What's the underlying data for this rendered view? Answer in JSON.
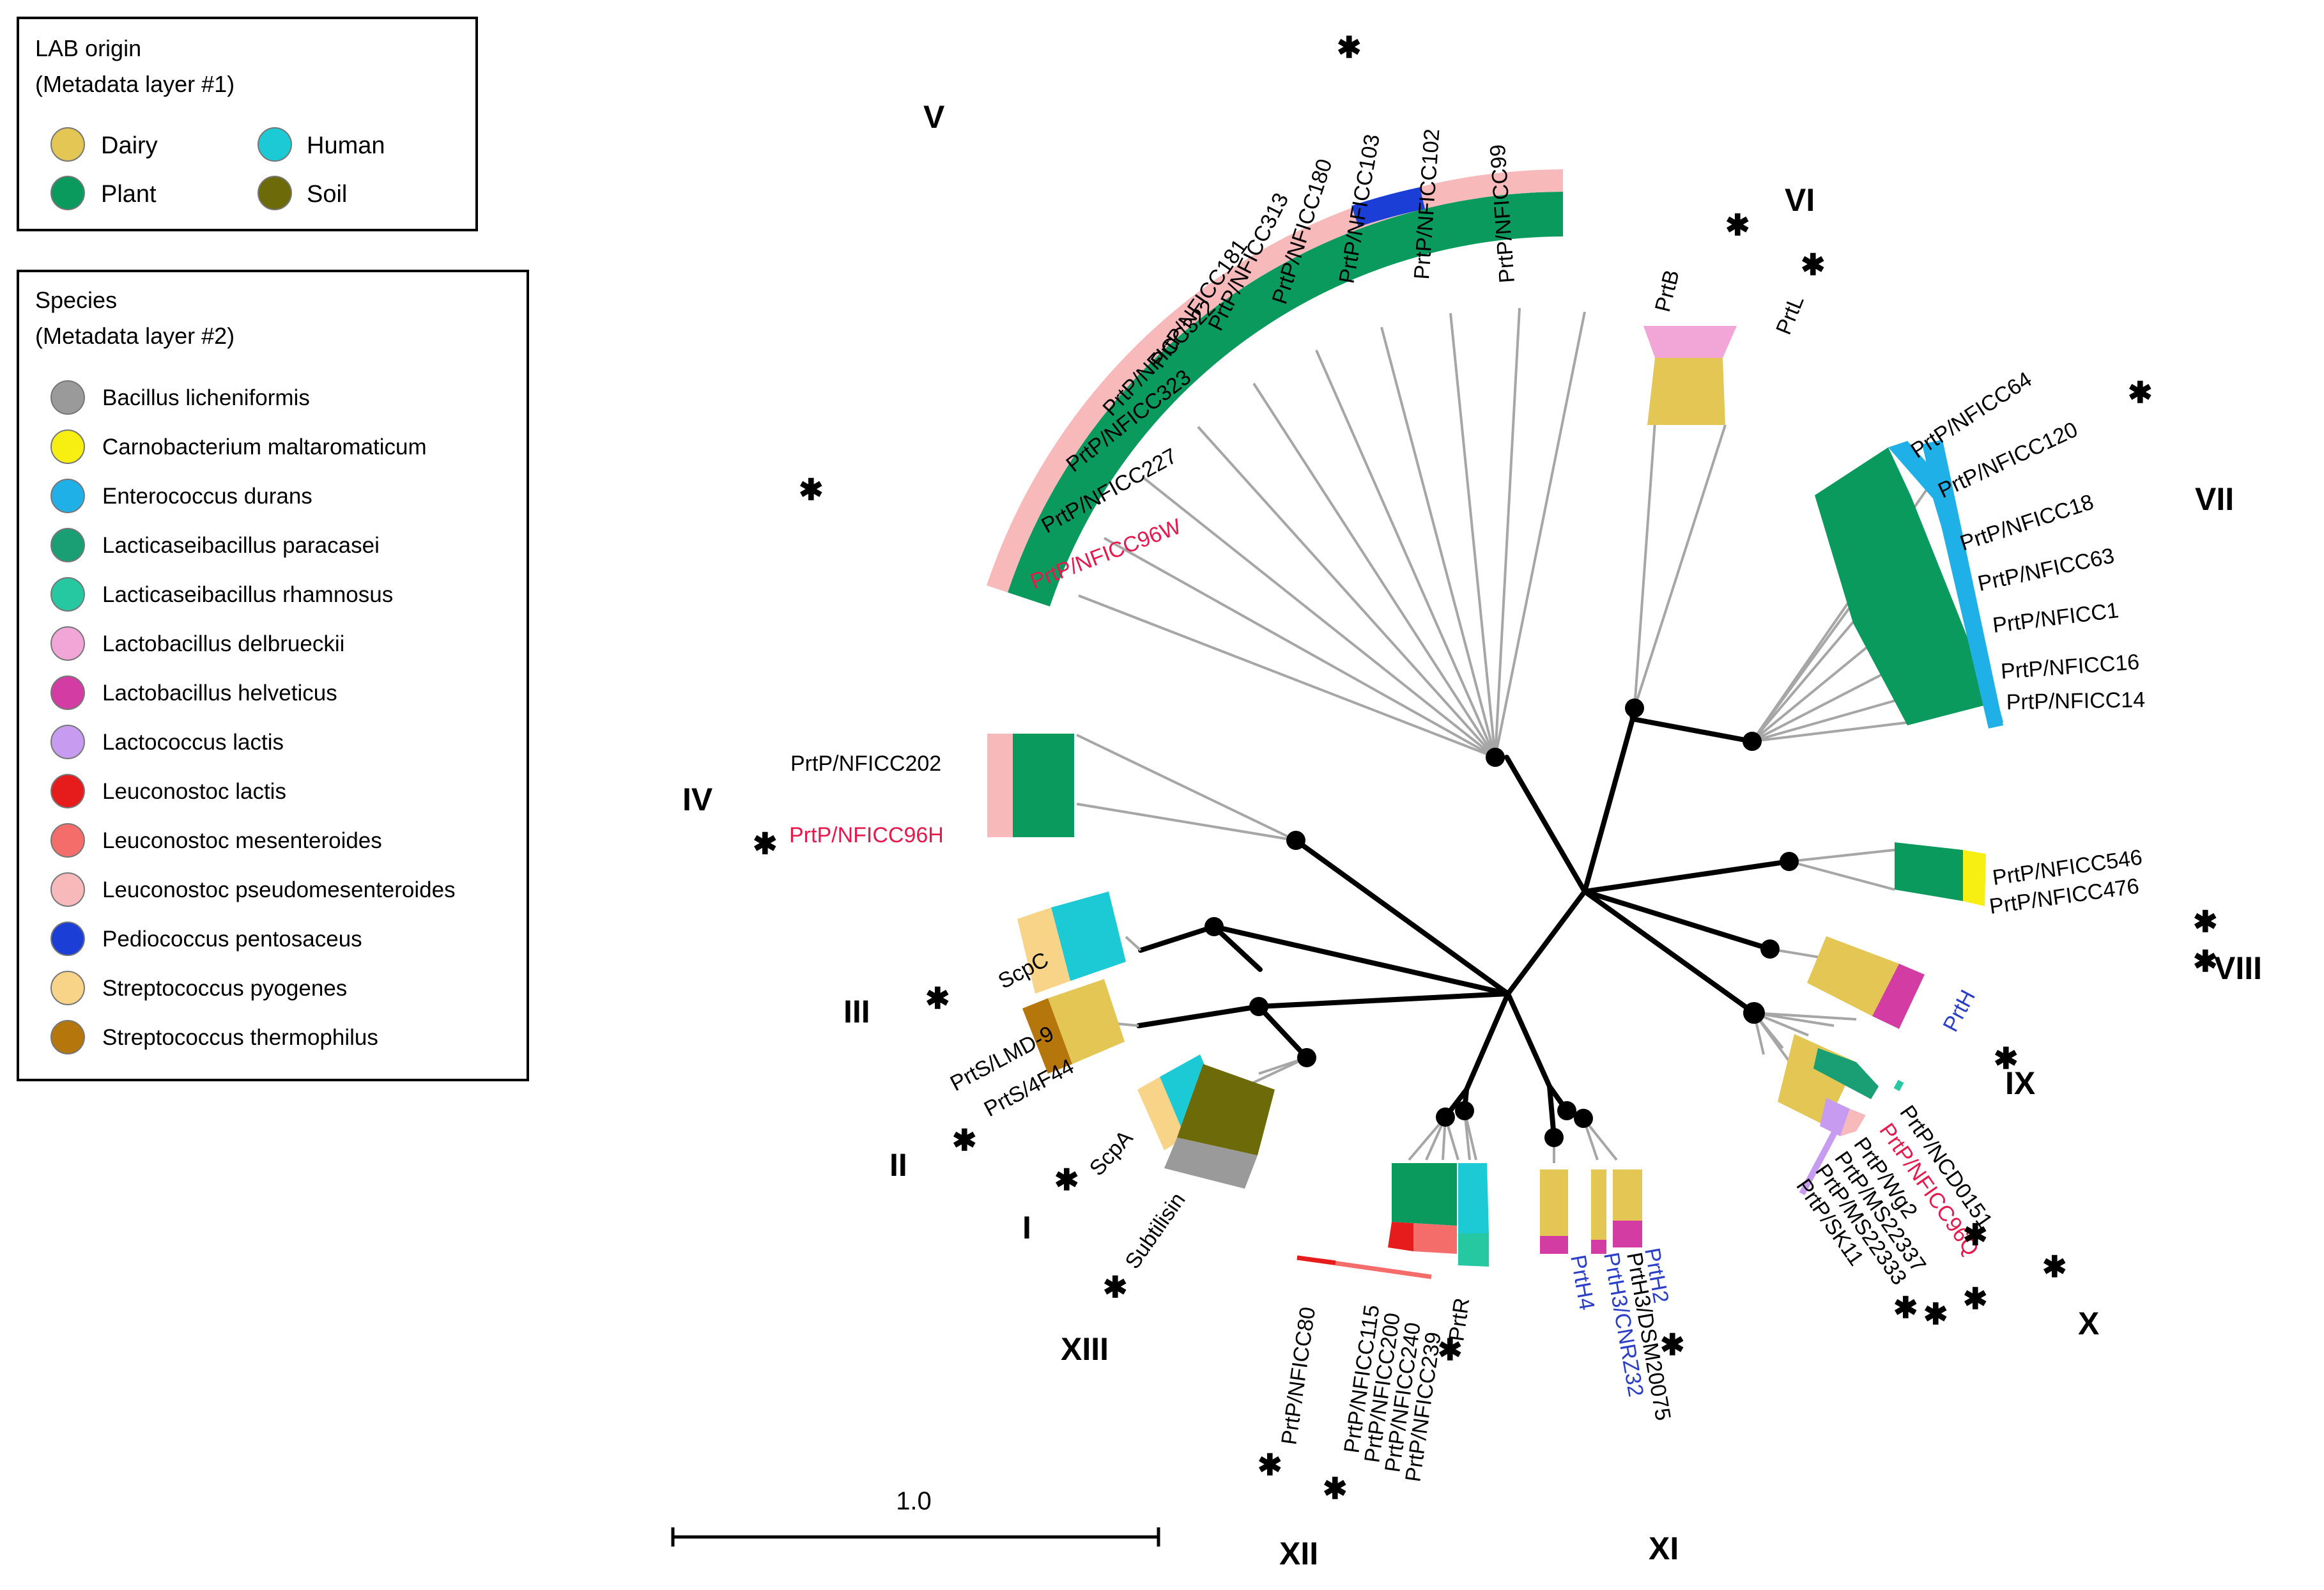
{
  "colors": {
    "dairy": "#e3c653",
    "human": "#1ccad6",
    "plant": "#0b9a5d",
    "soil": "#6d6a0a",
    "bacillus": "#9a9a9a",
    "carnobacterium": "#f7ef12",
    "enterococcus": "#20b0e8",
    "l_paracasei": "#1a9e74",
    "l_rhamnosus": "#25c8a0",
    "l_delbrueckii": "#f2a6d8",
    "l_helveticus": "#d23ca3",
    "lactococcus": "#c79cf0",
    "leuc_lactis": "#e61b1b",
    "leuc_mesenteroides": "#f46d6b",
    "leuc_pseudomesenteroides": "#f8b9bb",
    "pediococcus": "#1b3fd6",
    "s_pyogenes": "#f8d488",
    "s_thermophilus": "#b5760b",
    "branch": "#000000",
    "leaf": "#a6a6a6",
    "red_label": "#e8174c",
    "blue_label": "#2b3ec8"
  },
  "legend_origin": {
    "title": "LAB origin",
    "subtitle": "(Metadata layer #1)",
    "items": [
      {
        "label": "Dairy",
        "color": "#e3c653"
      },
      {
        "label": "Human",
        "color": "#1ccad6"
      },
      {
        "label": "Plant",
        "color": "#0b9a5d"
      },
      {
        "label": "Soil",
        "color": "#6d6a0a"
      }
    ]
  },
  "legend_species": {
    "title": "Species",
    "subtitle": "(Metadata layer #2)",
    "items": [
      {
        "label": "Bacillus licheniformis",
        "color": "#9a9a9a"
      },
      {
        "label": "Carnobacterium maltaromaticum",
        "color": "#f7ef12"
      },
      {
        "label": "Enterococcus durans",
        "color": "#20b0e8"
      },
      {
        "label": "Lacticaseibacillus paracasei",
        "color": "#1a9e74"
      },
      {
        "label": "Lacticaseibacillus rhamnosus",
        "color": "#25c8a0"
      },
      {
        "label": "Lactobacillus delbrueckii",
        "color": "#f2a6d8"
      },
      {
        "label": "Lactobacillus helveticus",
        "color": "#d23ca3"
      },
      {
        "label": "Lactococcus lactis",
        "color": "#c79cf0"
      },
      {
        "label": "Leuconostoc lactis",
        "color": "#e61b1b"
      },
      {
        "label": "Leuconostoc mesenteroides",
        "color": "#f46d6b"
      },
      {
        "label": "Leuconostoc pseudomesenteroides",
        "color": "#f8b9bb"
      },
      {
        "label": "Pediococcus pentosaceus",
        "color": "#1b3fd6"
      },
      {
        "label": "Streptococcus pyogenes",
        "color": "#f8d488"
      },
      {
        "label": "Streptococcus thermophilus",
        "color": "#b5760b"
      }
    ]
  },
  "scale_bar": {
    "label": "1.0"
  },
  "clades": {
    "I": "I",
    "II": "II",
    "III": "III",
    "IV": "IV",
    "V": "V",
    "VI": "VI",
    "VII": "VII",
    "VIII": "VIII",
    "IX": "IX",
    "X": "X",
    "XI": "XI",
    "XII": "XII",
    "XIII": "XIII"
  },
  "asterisk": "✱",
  "leaves": {
    "v": [
      "PrtP/NFICC96W",
      "PrtP/NFICC227",
      "PrtP/NFICC323",
      "PrtP/NFICC322",
      "PrtP/NFICC181",
      "PrtP/NFICC313",
      "PrtP/NFICC180",
      "PrtP/NFICC103",
      "PrtP/NFICC102",
      "PrtP/NFICC99"
    ],
    "vi": [
      "PrtB",
      "PrtL"
    ],
    "vii": [
      "PrtP/NFICC64",
      "PrtP/NFICC120",
      "PrtP/NFICC18",
      "PrtP/NFICC63",
      "PrtP/NFICC1",
      "PrtP/NFICC16",
      "PrtP/NFICC14"
    ],
    "viii": [
      "PrtP/NFICC546",
      "PrtP/NFICC476"
    ],
    "ix": [
      "PrtH"
    ],
    "x": [
      "PrtP/NCD0151",
      "PrtP/NFICC96Q",
      "PrtP/Wg2",
      "PrtP/MS22337",
      "PrtP/MS22333",
      "PrtP/SK11"
    ],
    "xi": [
      "PrtH2",
      "PrtH3/DSM20075",
      "PrtH3/CNRZ32",
      "PrtH4"
    ],
    "xii": [
      "PrtR",
      "PrtP/NFICC239",
      "PrtP/NFICC240",
      "PrtP/NFICC200",
      "PrtP/NFICC115",
      "PrtP/NFICC80"
    ],
    "iv": [
      "PrtP/NFICC202",
      "PrtP/NFICC96H"
    ],
    "iii": [
      "ScpC"
    ],
    "ii": [
      "PrtS/LMD-9",
      "PrtS/4F44"
    ],
    "i": [
      "ScpA"
    ],
    "xiii": [
      "Subtilisin"
    ]
  }
}
